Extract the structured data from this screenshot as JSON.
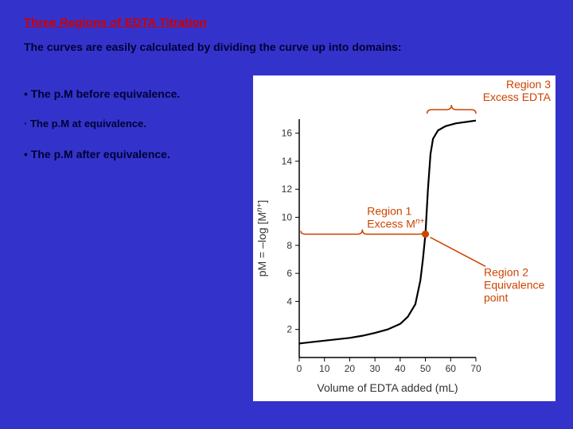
{
  "title": "Three Regions of EDTA Titration",
  "intro": "The curves are easily calculated by dividing the curve up into domains:",
  "bullets": [
    "• The p.M before equivalence.",
    "· The p.M at equivalence.",
    "• The p.M after equivalence."
  ],
  "chart": {
    "type": "line",
    "xlabel": "Volume of EDTA added (mL)",
    "ylabel_top": "pM = –log [M",
    "ylabel_sup": "n+",
    "ylabel_end": "]",
    "xlim": [
      0,
      70
    ],
    "ylim": [
      0,
      17
    ],
    "xticks": [
      0,
      10,
      20,
      30,
      40,
      50,
      60,
      70
    ],
    "yticks": [
      2,
      4,
      6,
      8,
      10,
      12,
      14,
      16
    ],
    "label_fontsize": 14,
    "tick_fontsize": 12,
    "annotation_fontsize": 14,
    "curve_color": "#000000",
    "curve_width": 2.2,
    "annotation_color": "#cc4400",
    "annotation_width": 1.5,
    "background_color": "#ffffff",
    "axis_color": "#000000",
    "curve_points": [
      [
        0,
        1.0
      ],
      [
        5,
        1.1
      ],
      [
        10,
        1.2
      ],
      [
        15,
        1.3
      ],
      [
        20,
        1.4
      ],
      [
        25,
        1.55
      ],
      [
        30,
        1.75
      ],
      [
        35,
        2.0
      ],
      [
        40,
        2.4
      ],
      [
        43,
        2.9
      ],
      [
        46,
        3.8
      ],
      [
        48,
        5.5
      ],
      [
        49,
        7.0
      ],
      [
        50,
        8.8
      ],
      [
        51,
        12.0
      ],
      [
        52,
        14.5
      ],
      [
        53,
        15.6
      ],
      [
        55,
        16.2
      ],
      [
        58,
        16.5
      ],
      [
        62,
        16.7
      ],
      [
        70,
        16.9
      ]
    ],
    "equivalence_point": [
      50,
      8.8
    ],
    "region1": {
      "label_line1": "Region 1",
      "label_line2": "Excess M",
      "label_sup": "n+",
      "bracket_x": [
        0,
        50
      ],
      "bracket_y": 8.8
    },
    "region2": {
      "label_line1": "Region 2",
      "label_line2": "Equivalence",
      "label_line3": "point",
      "pointer_from": [
        73,
        6.5
      ],
      "pointer_to": [
        50,
        8.8
      ]
    },
    "region3": {
      "label_line1": "Region 3",
      "label_line2": "Excess EDTA",
      "bracket_x": [
        50,
        70
      ],
      "bracket_y": 17.5
    }
  }
}
